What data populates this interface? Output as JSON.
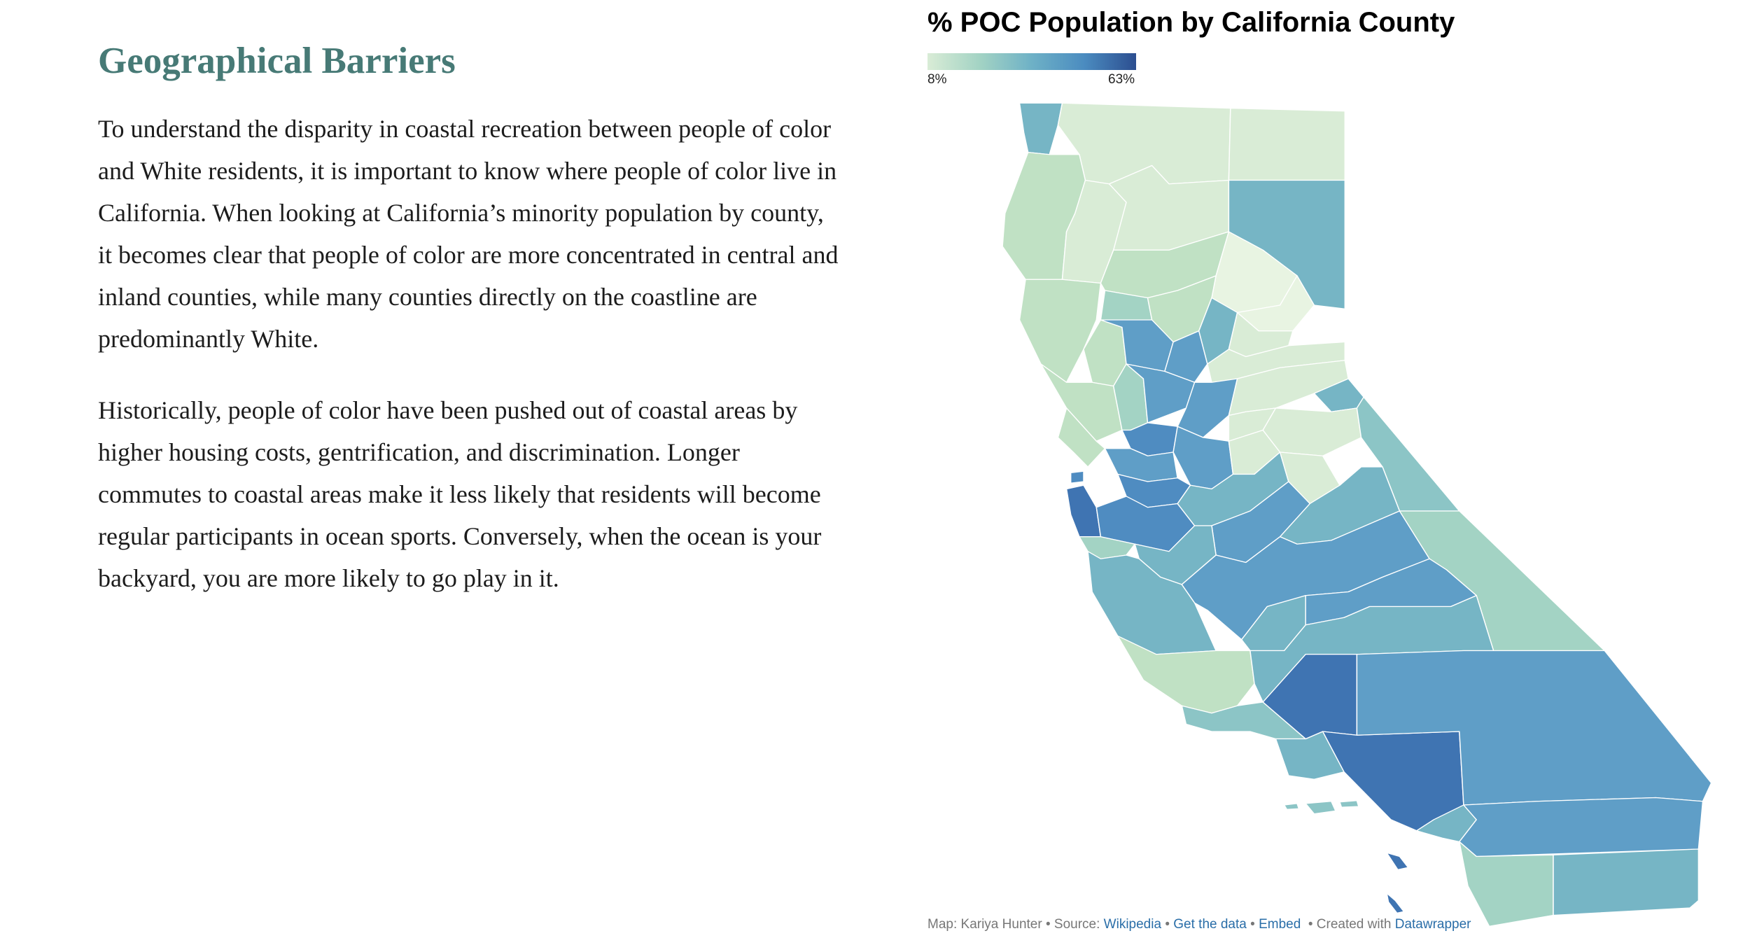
{
  "article": {
    "heading": "Geographical Barriers",
    "paragraphs": [
      "To understand the disparity in coastal recreation between people of color and White residents,  it is important to know where people of color live in California. When looking at California’s minority population by county, it becomes clear that people of color are more concentrated in central and inland counties, while many counties directly on the coastline are predominantly White.",
      "Historically, people of color have been pushed out of coastal areas by higher housing costs, gentrification, and discrimination. Longer commutes to coastal areas make it less likely that residents will become regular participants in ocean sports. Conversely, when the ocean is your backyard, you are more likely to go play in it."
    ]
  },
  "map": {
    "title": "% POC Population by California County",
    "legend": {
      "min_label": "8%",
      "max_label": "63%"
    },
    "color_scale": [
      "#e8f4e2",
      "#d9ecd6",
      "#c0e1c4",
      "#a3d3c4",
      "#8cc5c6",
      "#76b5c5",
      "#5f9ec7",
      "#4f8cc1",
      "#3f74b2",
      "#2f4f8e"
    ],
    "footer": {
      "map_credit": "Map: Kariya Hunter",
      "source_label": "Source:",
      "source_link": "Wikipedia",
      "get_data": "Get the data",
      "embed": "Embed",
      "created_with": "Created with",
      "datawrapper": "Datawrapper"
    }
  }
}
